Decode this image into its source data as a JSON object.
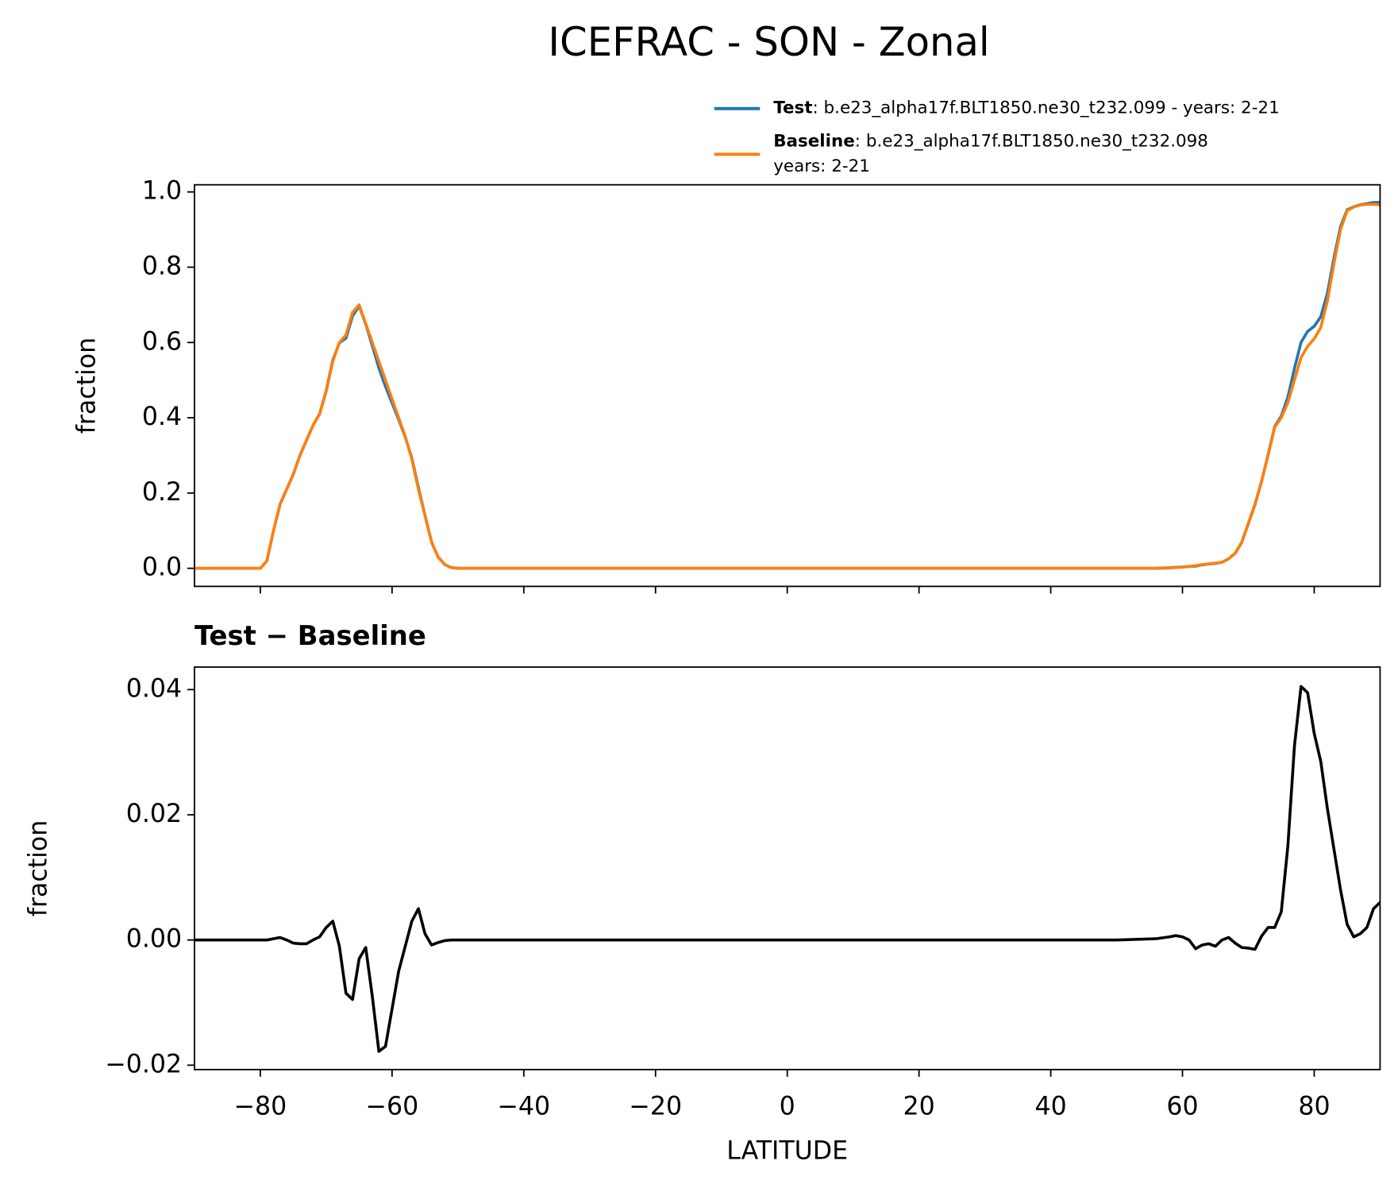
{
  "chart_data": [
    {
      "type": "line",
      "title": "ICEFRAC - SON - Zonal",
      "ylabel": "fraction",
      "x": [
        -90,
        -80,
        -79,
        -78,
        -77,
        -76,
        -75,
        -74,
        -73,
        -72,
        -71,
        -70,
        -69,
        -68,
        -67,
        -66,
        -65,
        -64,
        -63,
        -62,
        -61,
        -60,
        -59,
        -58,
        -57,
        -56,
        -55,
        -54,
        -53,
        -52,
        -51,
        -50,
        0,
        50,
        56,
        58,
        59,
        60,
        61,
        62,
        63,
        64,
        65,
        66,
        67,
        68,
        69,
        70,
        71,
        72,
        73,
        74,
        75,
        76,
        77,
        78,
        79,
        80,
        81,
        82,
        83,
        84,
        85,
        86,
        87,
        88,
        89,
        90
      ],
      "series": [
        {
          "name": "Test",
          "label": [
            ": b.e23_alpha17f.BLT1850.ne30_t232.099 - years: 2-21"
          ],
          "color": "#1f77b4",
          "values": [
            0,
            0,
            0.02,
            0.1002,
            0.1704,
            0.21,
            0.2495,
            0.2994,
            0.3394,
            0.38,
            0.4105,
            0.472,
            0.553,
            0.599,
            0.6115,
            0.6705,
            0.697,
            0.6488,
            0.591,
            0.5322,
            0.483,
            0.439,
            0.395,
            0.349,
            0.293,
            0.215,
            0.141,
            0.0692,
            0.0296,
            0.0099,
            0.002,
            0,
            0,
            0,
            0.0002,
            0.0015,
            0.0027,
            0.0035,
            0.005,
            0.0056,
            0.0092,
            0.0114,
            0.013,
            0.016,
            0.0254,
            0.0395,
            0.0688,
            0.1187,
            0.1685,
            0.2306,
            0.302,
            0.377,
            0.4045,
            0.455,
            0.531,
            0.6005,
            0.6295,
            0.643,
            0.6685,
            0.731,
            0.8245,
            0.908,
            0.9525,
            0.9605,
            0.966,
            0.969,
            0.972,
            0.972
          ]
        },
        {
          "name": "Baseline",
          "label": [
            ": b.e23_alpha17f.BLT1850.ne30_t232.098",
            "years: 2-21"
          ],
          "color": "#ff7f0e",
          "values": [
            0,
            0,
            0.02,
            0.1,
            0.17,
            0.21,
            0.25,
            0.3,
            0.34,
            0.38,
            0.41,
            0.47,
            0.55,
            0.6,
            0.62,
            0.68,
            0.7,
            0.65,
            0.6,
            0.55,
            0.5,
            0.45,
            0.4,
            0.35,
            0.29,
            0.21,
            0.14,
            0.07,
            0.03,
            0.01,
            0.002,
            0,
            0,
            0,
            0,
            0.001,
            0.002,
            0.003,
            0.005,
            0.007,
            0.01,
            0.012,
            0.014,
            0.016,
            0.025,
            0.04,
            0.07,
            0.12,
            0.17,
            0.23,
            0.3,
            0.375,
            0.4,
            0.44,
            0.5,
            0.56,
            0.59,
            0.61,
            0.64,
            0.71,
            0.81,
            0.9,
            0.95,
            0.96,
            0.965,
            0.967,
            0.967,
            0.966
          ]
        }
      ],
      "xlim": [
        -90,
        90
      ],
      "xticks": [
        -80,
        -60,
        -40,
        -20,
        0,
        20,
        40,
        60,
        80
      ],
      "ylim": [
        -0.048,
        1.019
      ],
      "yticks": [
        {
          "value": 0,
          "label": "0.0"
        },
        0.2,
        0.4,
        0.6,
        0.8,
        {
          "value": 1,
          "label": "1.0"
        }
      ],
      "legend": "upper right"
    },
    {
      "type": "line",
      "title": "Test − Baseline",
      "xlabel": "LATITUDE",
      "ylabel": "fraction",
      "color": "#000000",
      "x": [
        -90,
        -80,
        -79,
        -78,
        -77,
        -76,
        -75,
        -74,
        -73,
        -72,
        -71,
        -70,
        -69,
        -68,
        -67,
        -66,
        -65,
        -64,
        -63,
        -62,
        -61,
        -60,
        -59,
        -58,
        -57,
        -56,
        -55,
        -54,
        -53,
        -52,
        -51,
        -50,
        0,
        50,
        56,
        58,
        59,
        60,
        61,
        62,
        63,
        64,
        65,
        66,
        67,
        68,
        69,
        70,
        71,
        72,
        73,
        74,
        75,
        76,
        77,
        78,
        79,
        80,
        81,
        82,
        83,
        84,
        85,
        86,
        87,
        88,
        89,
        90
      ],
      "values": [
        0,
        0,
        0,
        0.0002,
        0.0004,
        0,
        -0.0005,
        -0.0006,
        -0.0006,
        0,
        0.0005,
        0.002,
        0.003,
        -0.001,
        -0.0085,
        -0.0095,
        -0.003,
        -0.0012,
        -0.009,
        -0.0178,
        -0.017,
        -0.011,
        -0.005,
        -0.001,
        0.003,
        0.005,
        0.001,
        -0.0008,
        -0.0004,
        -0.0001,
        0,
        0,
        0,
        0,
        0.0002,
        0.0005,
        0.0007,
        0.0005,
        0,
        -0.0014,
        -0.0008,
        -0.0006,
        -0.001,
        0,
        0.0004,
        -0.0005,
        -0.0012,
        -0.0013,
        -0.0015,
        0.0006,
        0.002,
        0.002,
        0.0045,
        0.015,
        0.031,
        0.0405,
        0.0395,
        0.033,
        0.0285,
        0.021,
        0.0145,
        0.008,
        0.0025,
        0.0005,
        0.001,
        0.002,
        0.005,
        0.006
      ],
      "xlim": [
        -90,
        90
      ],
      "xticks": [
        {
          "value": -80,
          "label": "−80"
        },
        {
          "value": -60,
          "label": "−60"
        },
        {
          "value": -40,
          "label": "−40"
        },
        {
          "value": -20,
          "label": "−20"
        },
        0,
        20,
        40,
        60,
        80
      ],
      "ylim": [
        -0.0207,
        0.0436
      ],
      "yticks": [
        {
          "value": -0.02,
          "label": "−0.02"
        },
        {
          "value": 0,
          "label": "0.00"
        },
        0.02,
        0.04
      ]
    }
  ]
}
